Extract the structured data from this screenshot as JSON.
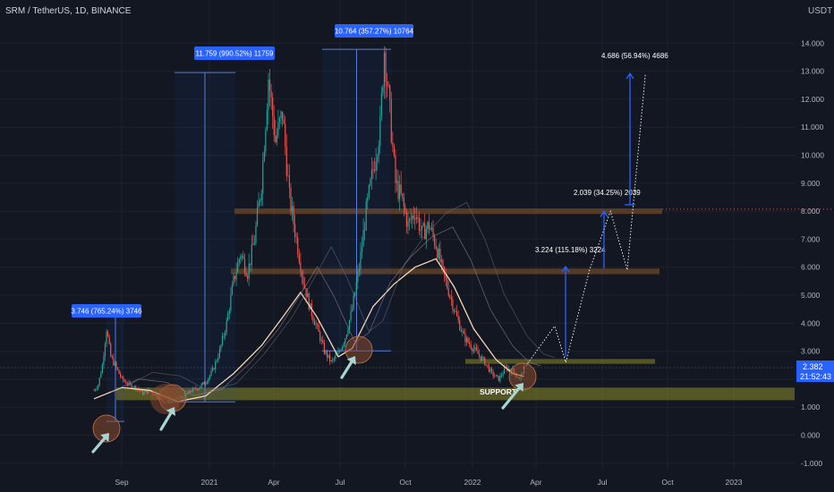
{
  "header": {
    "symbol": "SRM / TetherUS, 1D, BINANCE",
    "currency": "USDT"
  },
  "colors": {
    "background": "#131722",
    "grid": "#1e222d",
    "axis_text": "#b2b5be",
    "candle_up": "#26a69a",
    "candle_down": "#ef5350",
    "label_blue": "#2962ff",
    "zone_orange": "#8d5a2b",
    "zone_yellow": "#8b8b2a",
    "support_text": "#ffffff",
    "arrow_teal": "#a8d5d0",
    "circle_fill": "#8a4a2e"
  },
  "chart_data": {
    "type": "candlestick",
    "title": "SRM / TetherUS, 1D, BINANCE",
    "y_unit": "USDT",
    "ylim": [
      -1.2,
      15.0
    ],
    "y_ticks": [
      "14.000",
      "13.000",
      "12.000",
      "11.000",
      "10.000",
      "9.000",
      "8.000",
      "7.000",
      "6.000",
      "5.000",
      "4.000",
      "3.000",
      "2.000",
      "1.000",
      "0.000",
      "-1.000"
    ],
    "y_tick_values": [
      14,
      13,
      12,
      11,
      10,
      9,
      8,
      7,
      6,
      5,
      4,
      3,
      2,
      1,
      0,
      -1
    ],
    "x_ticks": [
      "Sep",
      "2021",
      "Apr",
      "Jul",
      "Oct",
      "2022",
      "Apr",
      "Jul",
      "Oct",
      "2023"
    ],
    "price_path": [
      [
        0,
        1.6
      ],
      [
        3,
        1.8
      ],
      [
        6,
        2.5
      ],
      [
        9,
        3.8
      ],
      [
        12,
        2.8
      ],
      [
        16,
        2.4
      ],
      [
        20,
        2.0
      ],
      [
        25,
        1.8
      ],
      [
        30,
        1.7
      ],
      [
        35,
        1.5
      ],
      [
        40,
        1.6
      ],
      [
        45,
        1.4
      ],
      [
        50,
        1.2
      ],
      [
        55,
        1.2
      ],
      [
        60,
        1.3
      ],
      [
        65,
        1.4
      ],
      [
        70,
        1.6
      ],
      [
        75,
        1.7
      ],
      [
        80,
        1.9
      ],
      [
        85,
        2.3
      ],
      [
        90,
        3.0
      ],
      [
        95,
        4.0
      ],
      [
        100,
        5.5
      ],
      [
        105,
        6.5
      ],
      [
        110,
        5.8
      ],
      [
        115,
        7.0
      ],
      [
        120,
        9.0
      ],
      [
        125,
        12.8
      ],
      [
        130,
        10.5
      ],
      [
        135,
        11.5
      ],
      [
        140,
        8.5
      ],
      [
        145,
        7.0
      ],
      [
        150,
        5.5
      ],
      [
        155,
        4.5
      ],
      [
        160,
        3.8
      ],
      [
        165,
        3.0
      ],
      [
        170,
        2.6
      ],
      [
        175,
        2.9
      ],
      [
        180,
        3.5
      ],
      [
        185,
        4.5
      ],
      [
        190,
        6.0
      ],
      [
        195,
        8.0
      ],
      [
        200,
        9.5
      ],
      [
        205,
        11.0
      ],
      [
        208,
        13.8
      ],
      [
        212,
        11.5
      ],
      [
        216,
        9.0
      ],
      [
        220,
        8.5
      ],
      [
        225,
        7.5
      ],
      [
        230,
        8.0
      ],
      [
        235,
        7.2
      ],
      [
        240,
        7.5
      ],
      [
        245,
        6.8
      ],
      [
        250,
        5.8
      ],
      [
        255,
        5.0
      ],
      [
        260,
        4.2
      ],
      [
        265,
        3.5
      ],
      [
        270,
        3.2
      ],
      [
        275,
        2.9
      ],
      [
        280,
        2.6
      ],
      [
        285,
        2.2
      ],
      [
        290,
        2.0
      ],
      [
        295,
        2.4
      ],
      [
        300,
        2.3
      ],
      [
        305,
        2.0
      ],
      [
        308,
        2.38
      ]
    ],
    "projection_path": [
      [
        308,
        2.38
      ],
      [
        330,
        3.9
      ],
      [
        338,
        2.6
      ],
      [
        355,
        5.9
      ],
      [
        370,
        8.0
      ],
      [
        382,
        5.9
      ],
      [
        395,
        12.9
      ]
    ],
    "moving_average": [
      [
        0,
        1.3
      ],
      [
        20,
        1.7
      ],
      [
        40,
        1.6
      ],
      [
        60,
        1.2
      ],
      [
        80,
        1.4
      ],
      [
        100,
        2.2
      ],
      [
        120,
        3.2
      ],
      [
        135,
        4.2
      ],
      [
        148,
        5.1
      ],
      [
        160,
        4.2
      ],
      [
        175,
        2.8
      ],
      [
        185,
        3.1
      ],
      [
        200,
        4.6
      ],
      [
        215,
        5.4
      ],
      [
        230,
        6.0
      ],
      [
        245,
        6.3
      ],
      [
        258,
        5.3
      ],
      [
        272,
        3.8
      ],
      [
        288,
        2.7
      ],
      [
        300,
        2.2
      ],
      [
        308,
        2.1
      ]
    ],
    "current_price": 2.382,
    "countdown": "21:52:43",
    "zones": [
      {
        "from": 7.9,
        "to": 8.1,
        "label": "",
        "color": "orange"
      },
      {
        "from": 5.75,
        "to": 5.95,
        "label": "",
        "color": "orange"
      },
      {
        "from": 2.55,
        "to": 2.72,
        "label": "",
        "color": "yellow"
      },
      {
        "from": 1.25,
        "to": 1.7,
        "label": "SUPPORT",
        "color": "yellow"
      }
    ],
    "measurements": [
      {
        "label": "3.746 (765.24%) 3746",
        "from": 0.49,
        "to": 4.24
      },
      {
        "label": "11.759 (990.52%) 11759",
        "from": 1.19,
        "to": 12.95
      },
      {
        "label": "10.764 (357.27%) 10764",
        "from": 3.01,
        "to": 13.78
      },
      {
        "label": "3.224 (115.18%) 3224",
        "from": 2.8,
        "to": 6.02
      },
      {
        "label": "2.039 (34.25%) 2039",
        "from": 5.95,
        "to": 7.99
      },
      {
        "label": "4.686 (56.94%) 4686",
        "from": 8.23,
        "to": 12.92
      }
    ],
    "annotations": [
      "SUPPORT"
    ]
  }
}
